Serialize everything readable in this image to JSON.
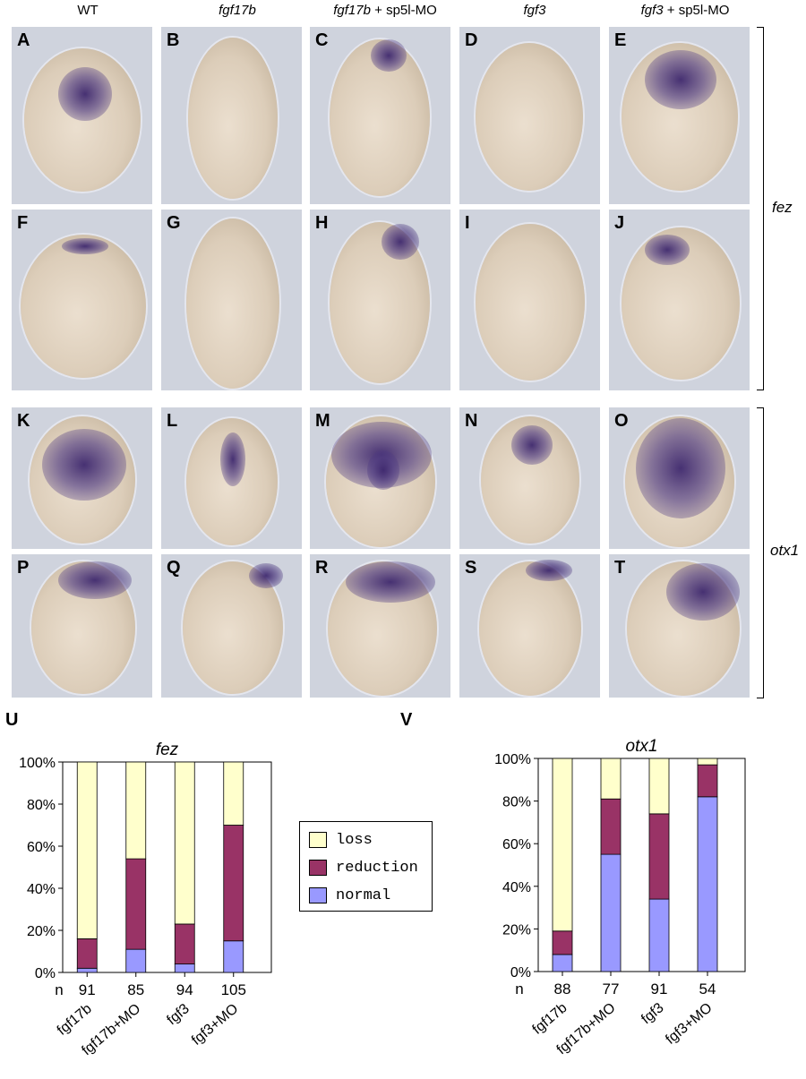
{
  "columns": [
    {
      "main": "WT",
      "suffix": ""
    },
    {
      "main": "fgf17b",
      "suffix": ""
    },
    {
      "main": "fgf17b",
      "suffix": " + sp5l-MO"
    },
    {
      "main": "fgf3",
      "suffix": ""
    },
    {
      "main": "fgf3",
      "suffix": " + sp5l-MO"
    }
  ],
  "panel_labels": [
    "A",
    "B",
    "C",
    "D",
    "E",
    "F",
    "G",
    "H",
    "I",
    "J",
    "K",
    "L",
    "M",
    "N",
    "O",
    "P",
    "Q",
    "R",
    "S",
    "T"
  ],
  "brackets": {
    "fez": "fez",
    "otx1": "otx1"
  },
  "chart_data": [
    {
      "type": "bar",
      "stacked": true,
      "panel": "U",
      "title": "fez",
      "categories": [
        "fgf17b",
        "fgf17b+MO",
        "fgf3",
        "fgf3+MO"
      ],
      "n_prefix": "n",
      "n": [
        "91",
        "85",
        "94",
        "105"
      ],
      "series": [
        {
          "name": "normal",
          "values": [
            2,
            11,
            4,
            15
          ]
        },
        {
          "name": "reduction",
          "values": [
            14,
            43,
            19,
            55
          ]
        },
        {
          "name": "loss",
          "values": [
            84,
            46,
            77,
            30
          ]
        }
      ],
      "ylim": [
        0,
        100
      ],
      "yticks": [
        "0%",
        "20%",
        "40%",
        "60%",
        "80%",
        "100%"
      ]
    },
    {
      "type": "bar",
      "stacked": true,
      "panel": "V",
      "title": "otx1",
      "categories": [
        "fgf17b",
        "fgf17b+MO",
        "fgf3",
        "fgf3+MO"
      ],
      "n_prefix": "n",
      "n": [
        "88",
        "77",
        "91",
        "54"
      ],
      "series": [
        {
          "name": "normal",
          "values": [
            8,
            55,
            34,
            82
          ]
        },
        {
          "name": "reduction",
          "values": [
            11,
            26,
            40,
            15
          ]
        },
        {
          "name": "loss",
          "values": [
            81,
            19,
            26,
            3
          ]
        }
      ],
      "ylim": [
        0,
        100
      ],
      "yticks": [
        "0%",
        "20%",
        "40%",
        "60%",
        "80%",
        "100%"
      ]
    }
  ],
  "legend": {
    "items": [
      "loss",
      "reduction",
      "normal"
    ]
  },
  "colors": {
    "loss": "#ffffcc",
    "reduction": "#993366",
    "normal": "#9999ff"
  }
}
